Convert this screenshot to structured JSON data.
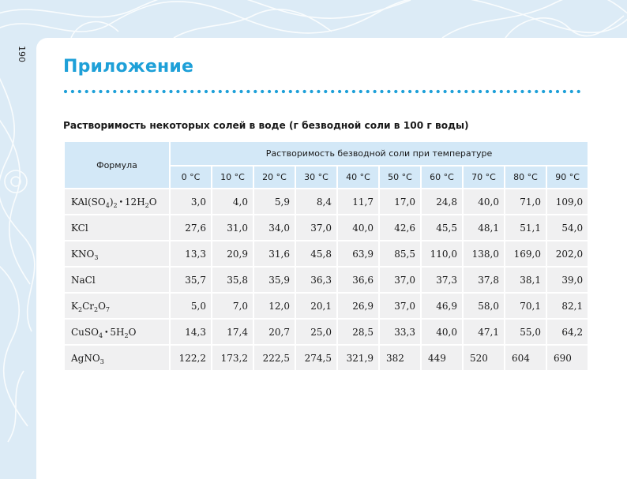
{
  "page_number": "190",
  "page_title": "Приложение",
  "table": {
    "caption": "Растворимость некоторых солей в воде (г безводной соли в 100 г воды)",
    "formula_header": "Формула",
    "group_header": "Растворимость безводной соли при температуре",
    "temperatures": [
      "0 °C",
      "10 °C",
      "20 °C",
      "30 °C",
      "40 °C",
      "50 °C",
      "60 °C",
      "70 °C",
      "80 °C",
      "90 °C"
    ],
    "rows": [
      {
        "formula": [
          {
            "t": "KAl(SO"
          },
          {
            "s": "4"
          },
          {
            "t": ")"
          },
          {
            "s": "2"
          },
          {
            "d": "•"
          },
          {
            "t": "12H"
          },
          {
            "s": "2"
          },
          {
            "t": "O"
          }
        ],
        "values": [
          "3,0",
          "4,0",
          "5,9",
          "8,4",
          "11,7",
          "17,0",
          "24,8",
          "40,0",
          "71,0",
          "109,0"
        ]
      },
      {
        "formula": [
          {
            "t": "KCl"
          }
        ],
        "values": [
          "27,6",
          "31,0",
          "34,0",
          "37,0",
          "40,0",
          "42,6",
          "45,5",
          "48,1",
          "51,1",
          "54,0"
        ]
      },
      {
        "formula": [
          {
            "t": "KNO"
          },
          {
            "s": "3"
          }
        ],
        "values": [
          "13,3",
          "20,9",
          "31,6",
          "45,8",
          "63,9",
          "85,5",
          "110,0",
          "138,0",
          "169,0",
          "202,0"
        ]
      },
      {
        "formula": [
          {
            "t": "NaCl"
          }
        ],
        "values": [
          "35,7",
          "35,8",
          "35,9",
          "36,3",
          "36,6",
          "37,0",
          "37,3",
          "37,8",
          "38,1",
          "39,0"
        ]
      },
      {
        "formula": [
          {
            "t": "K"
          },
          {
            "s": "2"
          },
          {
            "t": "Cr"
          },
          {
            "s": "2"
          },
          {
            "t": "O"
          },
          {
            "s": "7"
          }
        ],
        "values": [
          "5,0",
          "7,0",
          "12,0",
          "20,1",
          "26,9",
          "37,0",
          "46,9",
          "58,0",
          "70,1",
          "82,1"
        ]
      },
      {
        "formula": [
          {
            "t": "CuSO"
          },
          {
            "s": "4"
          },
          {
            "d": "•"
          },
          {
            "t": "5H"
          },
          {
            "s": "2"
          },
          {
            "t": "O"
          }
        ],
        "values": [
          "14,3",
          "17,4",
          "20,7",
          "25,0",
          "28,5",
          "33,3",
          "40,0",
          "47,1",
          "55,0",
          "64,2"
        ]
      },
      {
        "formula": [
          {
            "t": "AgNO"
          },
          {
            "s": "3"
          }
        ],
        "values": [
          "122,2",
          "173,2",
          "222,5",
          "274,5",
          "321,9",
          "382",
          "449",
          "520",
          "604",
          "690"
        ],
        "left_aligned_from": 5
      }
    ]
  },
  "colors": {
    "accent": "#1ea0d8",
    "background": "#dcebf6",
    "header_fill": "#d3e8f7",
    "row_fill": "#f0f0f1"
  }
}
